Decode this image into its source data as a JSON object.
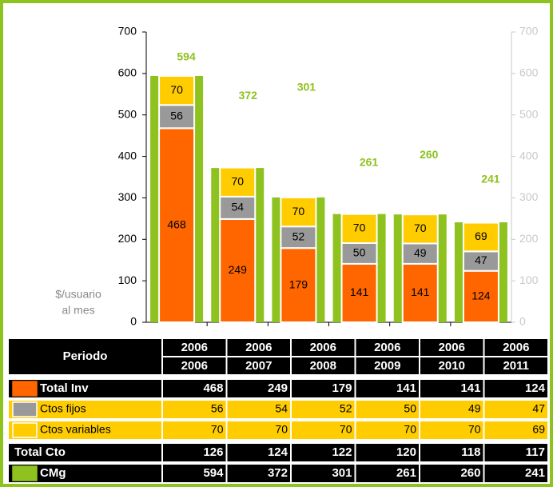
{
  "chart_data": {
    "type": "bar",
    "stacked": true,
    "categories": [
      "2006",
      "2007",
      "2008",
      "2009",
      "2010",
      "2011"
    ],
    "series": [
      {
        "name": "Total Inv",
        "color": "#ff6600",
        "values": [
          468,
          249,
          179,
          141,
          141,
          124
        ]
      },
      {
        "name": "Ctos fijos",
        "color": "#999999",
        "values": [
          56,
          54,
          52,
          50,
          49,
          47
        ]
      },
      {
        "name": "Ctos variables",
        "color": "#ffcc00",
        "values": [
          70,
          70,
          70,
          70,
          70,
          69
        ]
      },
      {
        "name": "CMg",
        "color": "#8dc21f",
        "values": [
          594,
          372,
          301,
          261,
          260,
          241
        ]
      }
    ],
    "y_label": [
      "$/usuario",
      "al mes"
    ],
    "ylim": [
      0,
      700
    ],
    "yticks": [
      0,
      100,
      200,
      300,
      400,
      500,
      600,
      700
    ],
    "y2lim": [
      0,
      700
    ],
    "y2ticks": [
      0,
      100,
      200,
      300,
      400,
      500,
      600,
      700
    ],
    "table": {
      "header": "Periodo",
      "period_start": [
        "2006",
        "2006",
        "2006",
        "2006",
        "2006",
        "2006"
      ],
      "total_cto": {
        "name": "Total Cto",
        "values": [
          126,
          124,
          122,
          120,
          118,
          117
        ]
      }
    }
  }
}
